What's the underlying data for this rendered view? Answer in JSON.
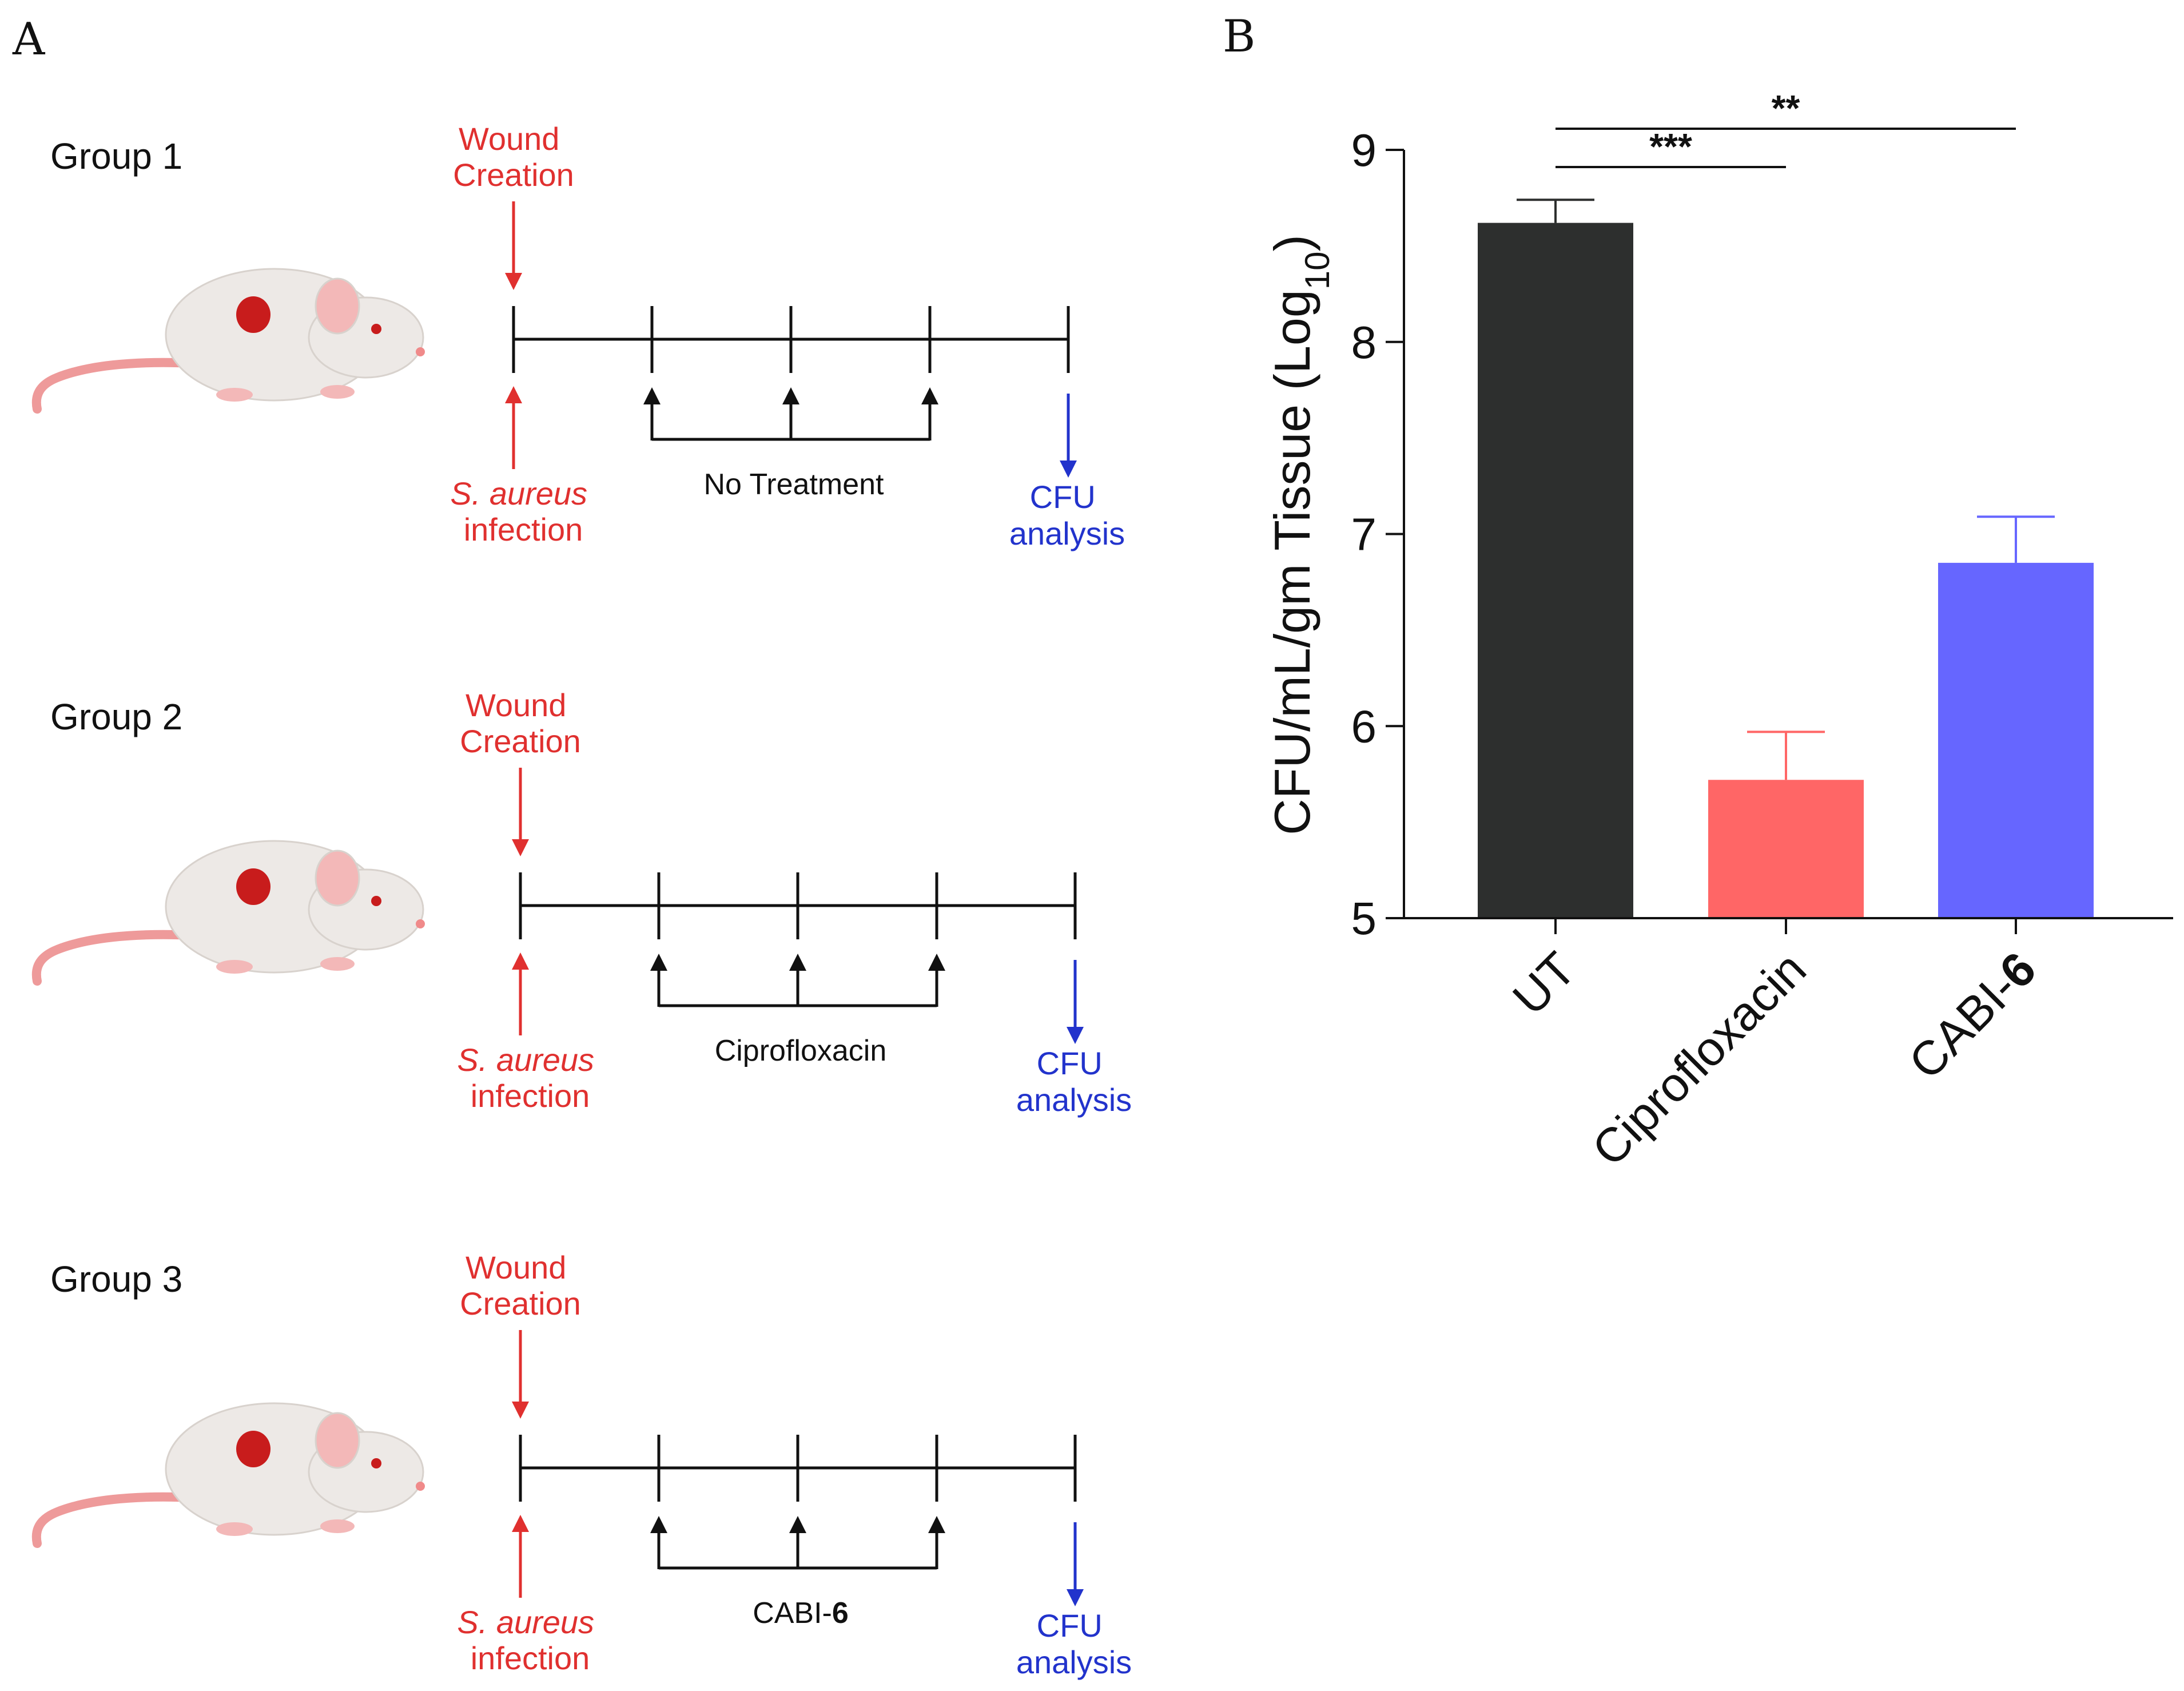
{
  "panels": {
    "a": "A",
    "b": "B"
  },
  "colors": {
    "red": "#e0302f",
    "blue": "#2233cc",
    "black": "#111111",
    "mouse_body": "#ede9e6",
    "mouse_tail": "#ee9a9a",
    "wound": "#c81c1c"
  },
  "groups": [
    {
      "label": "Group 1",
      "wound_label": [
        "Wound",
        "Creation"
      ],
      "infection_label": [
        "S. aureus",
        "infection"
      ],
      "treatment": "No Treatment",
      "treatment_bold_suffix": "",
      "cfu_label": [
        "CFU",
        "analysis"
      ]
    },
    {
      "label": "Group 2",
      "wound_label": [
        "Wound",
        "Creation"
      ],
      "infection_label": [
        "S. aureus",
        "infection"
      ],
      "treatment": "Ciprofloxacin",
      "treatment_bold_suffix": "",
      "cfu_label": [
        "CFU",
        "analysis"
      ]
    },
    {
      "label": "Group 3",
      "wound_label": [
        "Wound",
        "Creation"
      ],
      "infection_label": [
        "S. aureus",
        "infection"
      ],
      "treatment": "CABI-",
      "treatment_bold_suffix": "6",
      "cfu_label": [
        "CFU",
        "analysis"
      ]
    }
  ],
  "chart_data": {
    "type": "bar",
    "title": "",
    "xlabel": "",
    "ylabel": "CFU/mL/gm Tissue (Log10)",
    "ylabel_parts": [
      "CFU/mL/gm Tissue (Log",
      "10",
      ")"
    ],
    "ylim": [
      5,
      9
    ],
    "yticks": [
      5,
      6,
      7,
      8,
      9
    ],
    "categories": [
      "UT",
      "Ciprofloxacin",
      "CABI-6"
    ],
    "category_parts": [
      [
        "UT",
        ""
      ],
      [
        "Ciprofloxacin",
        ""
      ],
      [
        "CABI-",
        "6"
      ]
    ],
    "values": [
      8.62,
      5.72,
      6.85
    ],
    "errors": [
      0.12,
      0.25,
      0.24
    ],
    "bar_colors": [
      "#2d2f2e",
      "#ff6666",
      "#6666ff"
    ],
    "significance": [
      {
        "from": 0,
        "to": 1,
        "label": "***"
      },
      {
        "from": 0,
        "to": 2,
        "label": "**"
      }
    ]
  }
}
